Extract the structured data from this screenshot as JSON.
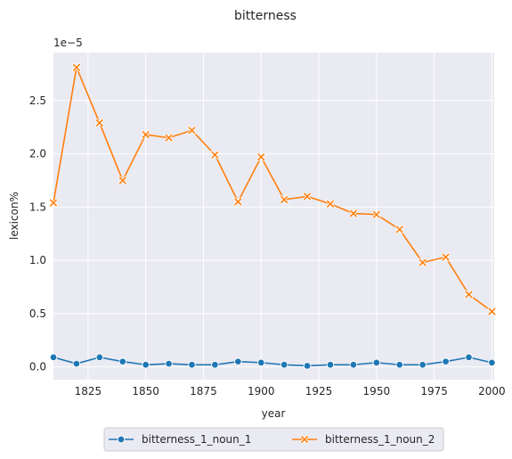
{
  "chart_data": {
    "type": "line",
    "title": "bitterness",
    "xlabel": "year",
    "ylabel": "lexicon%",
    "y_offset_label": "1e−5",
    "xlim": [
      1810,
      2001
    ],
    "ylim": [
      -0.12,
      2.95
    ],
    "x_ticks": [
      1825,
      1850,
      1875,
      1900,
      1925,
      1950,
      1975,
      2000
    ],
    "x_tick_labels": [
      "1825",
      "1850",
      "1875",
      "1900",
      "1925",
      "1950",
      "1975",
      "2000"
    ],
    "y_ticks": [
      0.0,
      0.5,
      1.0,
      1.5,
      2.0,
      2.5
    ],
    "y_tick_labels": [
      "0.0",
      "0.5",
      "1.0",
      "1.5",
      "2.0",
      "2.5"
    ],
    "grid": true,
    "legend_position": "bottom-center",
    "x": [
      1810,
      1820,
      1830,
      1840,
      1850,
      1860,
      1870,
      1880,
      1890,
      1900,
      1910,
      1920,
      1930,
      1940,
      1950,
      1960,
      1970,
      1980,
      1990,
      2000
    ],
    "series": [
      {
        "name": "bitterness_1_noun_1",
        "color": "#1f77b4",
        "marker": "circle",
        "values": [
          0.09,
          0.03,
          0.09,
          0.05,
          0.02,
          0.03,
          0.02,
          0.02,
          0.05,
          0.04,
          0.02,
          0.01,
          0.02,
          0.02,
          0.04,
          0.02,
          0.02,
          0.05,
          0.09,
          0.04
        ]
      },
      {
        "name": "bitterness_1_noun_2",
        "color": "#ff7f0e",
        "marker": "x",
        "values": [
          1.54,
          2.81,
          2.29,
          1.75,
          2.18,
          2.15,
          2.22,
          1.99,
          1.55,
          1.97,
          1.57,
          1.6,
          1.53,
          1.44,
          1.43,
          1.29,
          0.98,
          1.03,
          0.68,
          0.52
        ]
      }
    ]
  }
}
